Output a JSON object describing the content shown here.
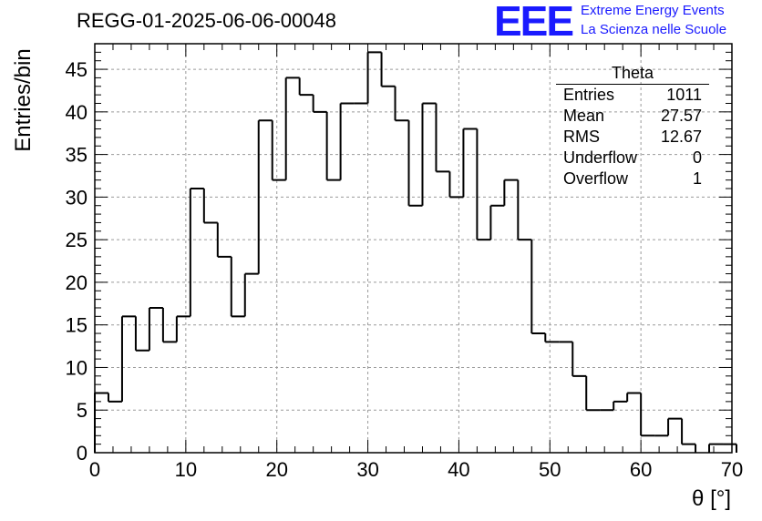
{
  "title": "REGG-01-2025-06-06-00048",
  "logo": {
    "mark": "EEE",
    "line1": "Extreme Energy Events",
    "line2": "La Scienza nelle Scuole",
    "color": "#1a1aff"
  },
  "stats": {
    "title": "Theta",
    "rows": [
      {
        "label": "Entries",
        "value": "1011"
      },
      {
        "label": "Mean",
        "value": "27.57"
      },
      {
        "label": "RMS",
        "value": "12.67"
      },
      {
        "label": "Underflow",
        "value": "0"
      },
      {
        "label": "Overflow",
        "value": "1"
      }
    ]
  },
  "chart_data": {
    "type": "histogram",
    "xlabel": "θ [°]",
    "ylabel": "Entries/bin",
    "xlim": [
      0,
      70
    ],
    "ylim": [
      0,
      48
    ],
    "bin_width": 1.5,
    "bin_start": 0,
    "values": [
      7,
      6,
      16,
      12,
      17,
      13,
      16,
      31,
      27,
      23,
      16,
      21,
      39,
      32,
      44,
      42,
      40,
      32,
      41,
      41,
      47,
      43,
      39,
      29,
      41,
      33,
      30,
      38,
      25,
      29,
      32,
      25,
      14,
      13,
      13,
      9,
      5,
      5,
      6,
      7,
      2,
      2,
      4,
      1,
      0,
      1,
      1,
      0
    ],
    "x_ticks": [
      0,
      10,
      20,
      30,
      40,
      50,
      60,
      70
    ],
    "y_ticks": [
      0,
      5,
      10,
      15,
      20,
      25,
      30,
      35,
      40,
      45
    ],
    "grid": true,
    "line_color": "#000000"
  }
}
